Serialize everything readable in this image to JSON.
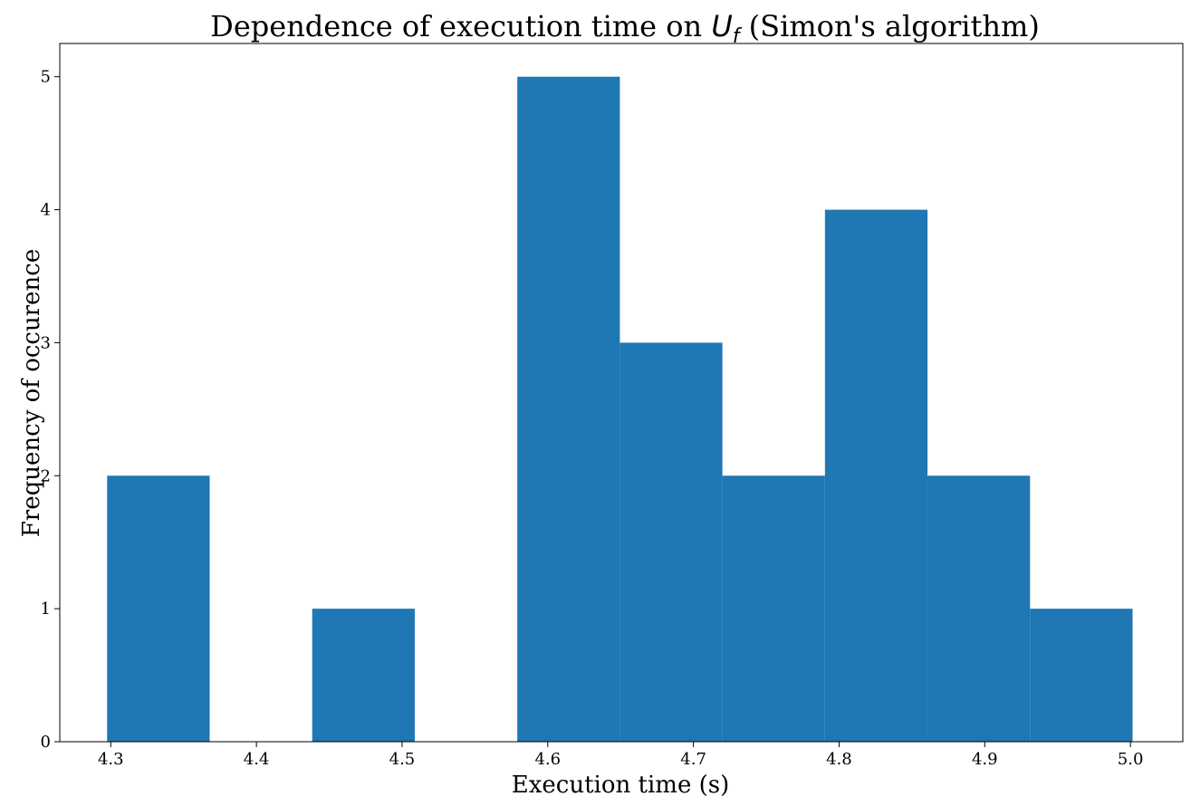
{
  "chart_data": {
    "type": "bar",
    "title": {
      "prefix": "Dependence of execution time on ",
      "math_symbol": "U",
      "math_subscript": "f",
      "suffix": " (Simon's algorithm)"
    },
    "xlabel": "Execution time (s)",
    "ylabel": "Frequency of occurence",
    "xlim": [
      4.265,
      5.036
    ],
    "ylim": [
      0,
      5.25
    ],
    "xticks": [
      "4.3",
      "4.4",
      "4.5",
      "4.6",
      "4.7",
      "4.8",
      "4.9",
      "5.0"
    ],
    "xtick_values": [
      4.3,
      4.4,
      4.5,
      4.6,
      4.7,
      4.8,
      4.9,
      5.0
    ],
    "yticks": [
      "0",
      "1",
      "2",
      "3",
      "4",
      "5"
    ],
    "ytick_values": [
      0,
      1,
      2,
      3,
      4,
      5
    ],
    "bin_edges": [
      4.2975,
      4.3679,
      4.4383,
      4.5087,
      4.5791,
      4.6495,
      4.7199,
      4.7903,
      4.8607,
      4.9311,
      5.0015
    ],
    "values": [
      2,
      0,
      1,
      0,
      5,
      3,
      2,
      4,
      2,
      1
    ],
    "bar_color": "#1f77b4",
    "grid": false,
    "legend": "none"
  }
}
